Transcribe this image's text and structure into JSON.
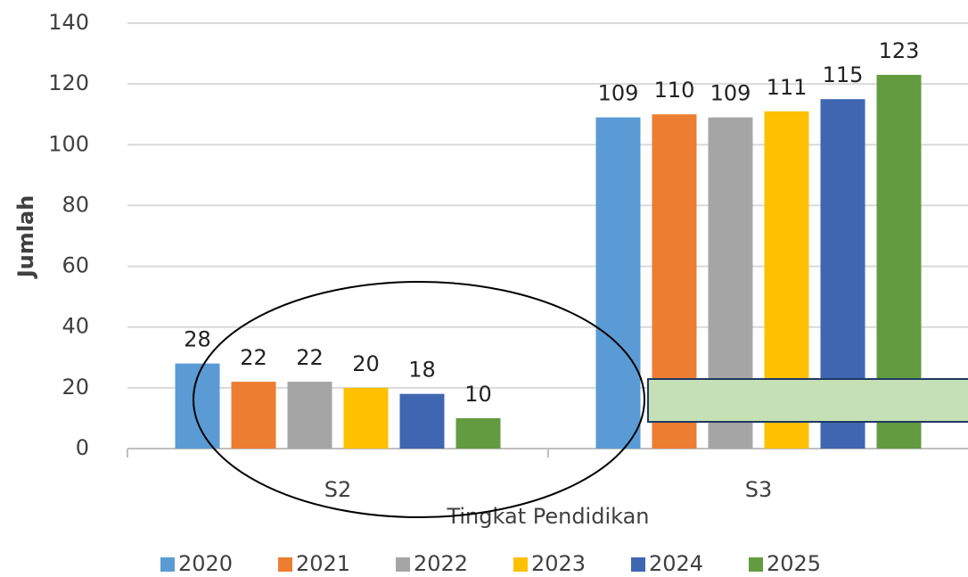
{
  "chart_data": {
    "type": "bar",
    "categories": [
      "S2",
      "S3"
    ],
    "series": [
      {
        "name": "2020",
        "color": "#5b9bd5",
        "values": [
          28,
          109
        ]
      },
      {
        "name": "2021",
        "color": "#ed7d31",
        "values": [
          22,
          110
        ]
      },
      {
        "name": "2022",
        "color": "#a5a5a5",
        "values": [
          22,
          109
        ]
      },
      {
        "name": "2023",
        "color": "#ffc000",
        "values": [
          20,
          111
        ]
      },
      {
        "name": "2024",
        "color": "#3f66b0",
        "values": [
          18,
          115
        ]
      },
      {
        "name": "2025",
        "color": "#639b40",
        "values": [
          10,
          123
        ]
      }
    ],
    "x_label": "Tingkat Pendidikan",
    "y_label": "Jumlah",
    "ylim": [
      0,
      140
    ],
    "yticks": [
      0,
      20,
      40,
      60,
      80,
      100,
      120,
      140
    ],
    "grid": true,
    "legend": "bottom"
  }
}
